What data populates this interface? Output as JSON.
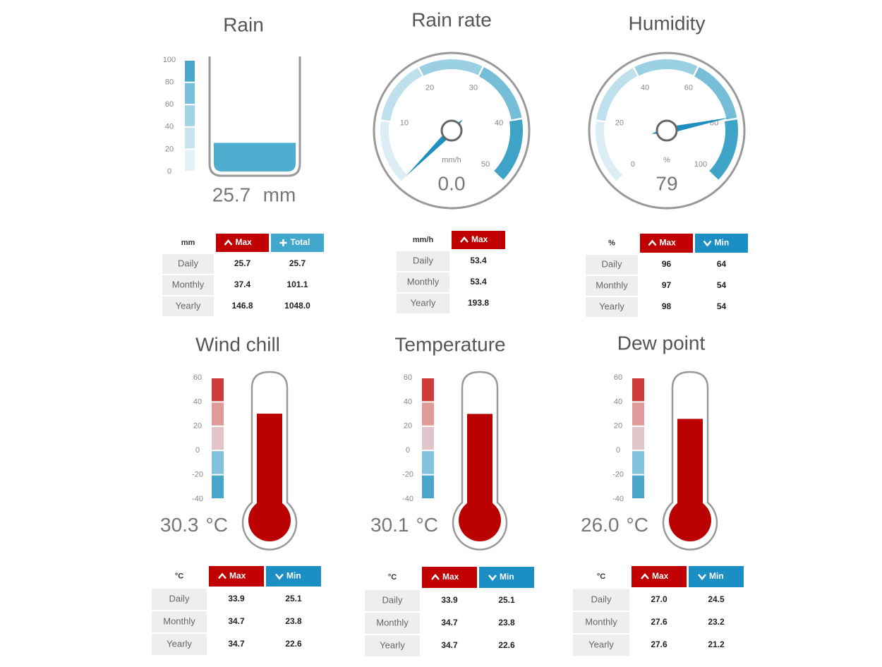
{
  "panels": [
    {
      "title": "Rain",
      "kind": "cylinder",
      "reading": 25.7,
      "unit": "mm",
      "scale": {
        "lim": [
          0,
          100
        ],
        "ticks": [
          0,
          20,
          40,
          60,
          80,
          100
        ]
      },
      "table": {
        "unit": "mm",
        "columns": [
          {
            "label": "Max",
            "icon": "up",
            "color": "#c00000"
          },
          {
            "label": "Total",
            "icon": "plus",
            "color": "#41a7cc"
          }
        ],
        "rows": [
          {
            "label": "Daily",
            "cells": [
              "25.7",
              "25.7"
            ]
          },
          {
            "label": "Monthly",
            "cells": [
              "37.4",
              "101.1"
            ]
          },
          {
            "label": "Yearly",
            "cells": [
              "146.8",
              "1048.0"
            ]
          }
        ]
      }
    },
    {
      "title": "Rain rate",
      "kind": "dial",
      "reading": {
        "value": 0,
        "label": "0.0"
      },
      "unit": "mm/h",
      "scale": {
        "lim": [
          0,
          50
        ],
        "ticks": [
          10,
          20,
          30,
          40,
          50
        ]
      },
      "table": {
        "unit": "mm/h",
        "columns": [
          {
            "label": "Max",
            "icon": "up",
            "color": "#c00000"
          }
        ],
        "rows": [
          {
            "label": "Daily",
            "cells": [
              "53.4"
            ]
          },
          {
            "label": "Monthly",
            "cells": [
              "53.4"
            ]
          },
          {
            "label": "Yearly",
            "cells": [
              "193.8"
            ]
          }
        ]
      }
    },
    {
      "title": "Humidity",
      "kind": "dial",
      "reading": 79,
      "unit": "%",
      "scale": {
        "lim": [
          0,
          100
        ],
        "ticks": [
          0,
          20,
          40,
          60,
          80,
          100
        ]
      },
      "table": {
        "unit": "%",
        "columns": [
          {
            "label": "Max",
            "icon": "up",
            "color": "#c00000"
          },
          {
            "label": "Min",
            "icon": "down",
            "color": "#1b8fc4"
          }
        ],
        "rows": [
          {
            "label": "Daily",
            "cells": [
              "96",
              "64"
            ]
          },
          {
            "label": "Monthly",
            "cells": [
              "97",
              "54"
            ]
          },
          {
            "label": "Yearly",
            "cells": [
              "98",
              "54"
            ]
          }
        ]
      }
    },
    {
      "title": "Wind chill",
      "kind": "thermometer",
      "reading": 30.3,
      "unit": "°C",
      "scale": {
        "lim": [
          -40,
          60
        ],
        "ticks": [
          -40,
          -20,
          0,
          20,
          40,
          60
        ]
      },
      "table": {
        "unit": "°C",
        "columns": [
          {
            "label": "Max",
            "icon": "up",
            "color": "#c00000"
          },
          {
            "label": "Min",
            "icon": "down",
            "color": "#1b8fc4"
          }
        ],
        "rows": [
          {
            "label": "Daily",
            "cells": [
              "33.9",
              "25.1"
            ]
          },
          {
            "label": "Monthly",
            "cells": [
              "34.7",
              "23.8"
            ]
          },
          {
            "label": "Yearly",
            "cells": [
              "34.7",
              "22.6"
            ]
          }
        ]
      }
    },
    {
      "title": "Temperature",
      "kind": "thermometer",
      "reading": 30.1,
      "unit": "°C",
      "scale": {
        "lim": [
          -40,
          60
        ],
        "ticks": [
          -40,
          -20,
          0,
          20,
          40,
          60
        ]
      },
      "table": {
        "unit": "°C",
        "columns": [
          {
            "label": "Max",
            "icon": "up",
            "color": "#c00000"
          },
          {
            "label": "Min",
            "icon": "down",
            "color": "#1b8fc4"
          }
        ],
        "rows": [
          {
            "label": "Daily",
            "cells": [
              "33.9",
              "25.1"
            ]
          },
          {
            "label": "Monthly",
            "cells": [
              "34.7",
              "23.8"
            ]
          },
          {
            "label": "Yearly",
            "cells": [
              "34.7",
              "22.6"
            ]
          }
        ]
      }
    },
    {
      "title": "Dew point",
      "kind": "thermometer",
      "reading": {
        "value": 26,
        "label": "26.0"
      },
      "unit": "°C",
      "scale": {
        "lim": [
          -40,
          60
        ],
        "ticks": [
          -40,
          -20,
          0,
          20,
          40,
          60
        ]
      },
      "table": {
        "unit": "°C",
        "columns": [
          {
            "label": "Max",
            "icon": "up",
            "color": "#c00000"
          },
          {
            "label": "Min",
            "icon": "down",
            "color": "#1b8fc4"
          }
        ],
        "rows": [
          {
            "label": "Daily",
            "cells": [
              "27.0",
              "24.5"
            ]
          },
          {
            "label": "Monthly",
            "cells": [
              "27.6",
              "23.2"
            ]
          },
          {
            "label": "Yearly",
            "cells": [
              "27.6",
              "21.2"
            ]
          }
        ]
      }
    }
  ]
}
